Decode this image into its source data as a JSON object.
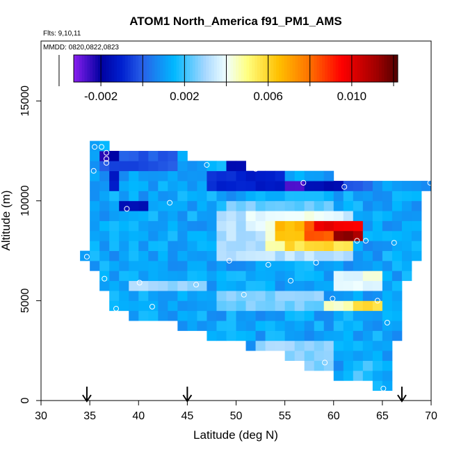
{
  "chart_data": {
    "type": "heatmap",
    "title": "ATOM1 North_America f91_PM1_AMS",
    "flights_note": "Flts: 9,10,11",
    "dates_note": "MMDD: 0820,0822,0823",
    "xlabel": "Latitude (deg N)",
    "ylabel": "Altitude (m)",
    "xlim": [
      30,
      70
    ],
    "ylim": [
      0,
      18000
    ],
    "x_ticks": [
      30,
      35,
      40,
      45,
      50,
      55,
      60,
      65,
      70
    ],
    "x_tick_labels": [
      "30",
      "35",
      "40",
      "45",
      "50",
      "55",
      "60",
      "65",
      "70"
    ],
    "y_ticks": [
      0,
      5000,
      10000,
      15000
    ],
    "y_tick_labels": [
      "0",
      "5000",
      "10000",
      "15000"
    ],
    "cell_width_deg": 1.0,
    "cell_height_m": 500,
    "colorbar": {
      "range": [
        -0.0033,
        0.0122
      ],
      "ticks": [
        -0.002,
        0.002,
        0.006,
        0.01
      ],
      "tick_labels": [
        "-0.002",
        "0.002",
        "0.006",
        "0.010"
      ],
      "separators": [
        -0.004,
        -0.002,
        0.0,
        0.002,
        0.004,
        0.006,
        0.008,
        0.01,
        0.012
      ],
      "stops": [
        {
          "v": -0.0033,
          "c": "#8a1ef0"
        },
        {
          "v": -0.002,
          "c": "#0000a0"
        },
        {
          "v": -0.001,
          "c": "#0020d0"
        },
        {
          "v": 0.0,
          "c": "#2860e8"
        },
        {
          "v": 0.0015,
          "c": "#00b8ff"
        },
        {
          "v": 0.003,
          "c": "#a8d8ff"
        },
        {
          "v": 0.004,
          "c": "#f0ffff"
        },
        {
          "v": 0.005,
          "c": "#ffff80"
        },
        {
          "v": 0.0065,
          "c": "#ffc000"
        },
        {
          "v": 0.008,
          "c": "#ff7000"
        },
        {
          "v": 0.0095,
          "c": "#ff0000"
        },
        {
          "v": 0.0112,
          "c": "#a00000"
        },
        {
          "v": 0.0122,
          "c": "#500000"
        }
      ]
    },
    "flight_markers_lat": [
      34.7,
      45.0,
      67.0
    ],
    "sample_points": [
      [
        35.5,
        12700
      ],
      [
        36.2,
        12700
      ],
      [
        36.7,
        12400
      ],
      [
        36.7,
        12100
      ],
      [
        36.7,
        11900
      ],
      [
        35.4,
        11500
      ],
      [
        47.0,
        11800
      ],
      [
        52.0,
        11600
      ],
      [
        56.9,
        10900
      ],
      [
        61.1,
        10700
      ],
      [
        69.9,
        10900
      ],
      [
        38.8,
        9600
      ],
      [
        43.2,
        9900
      ],
      [
        62.4,
        8000
      ],
      [
        63.3,
        8000
      ],
      [
        66.2,
        7900
      ],
      [
        49.3,
        7000
      ],
      [
        53.3,
        6800
      ],
      [
        58.2,
        6900
      ],
      [
        34.7,
        7200
      ],
      [
        36.5,
        6100
      ],
      [
        40.1,
        5900
      ],
      [
        45.9,
        5800
      ],
      [
        55.6,
        6000
      ],
      [
        50.8,
        5300
      ],
      [
        59.9,
        5100
      ],
      [
        64.5,
        5000
      ],
      [
        41.4,
        4700
      ],
      [
        37.7,
        4600
      ],
      [
        65.5,
        3900
      ],
      [
        59.1,
        1900
      ],
      [
        65.1,
        600
      ]
    ],
    "columns": [
      {
        "lat": 34.5,
        "bot": 7000,
        "top": 7500
      },
      {
        "lat": 35.5,
        "bot": 6500,
        "top": 13000
      },
      {
        "lat": 36.5,
        "bot": 5500,
        "top": 13000
      },
      {
        "lat": 37.5,
        "bot": 4500,
        "top": 12500
      },
      {
        "lat": 38.5,
        "bot": 4500,
        "top": 12500
      },
      {
        "lat": 39.5,
        "bot": 4000,
        "top": 12500
      },
      {
        "lat": 40.5,
        "bot": 4000,
        "top": 12500
      },
      {
        "lat": 41.5,
        "bot": 4000,
        "top": 12500
      },
      {
        "lat": 42.5,
        "bot": 4000,
        "top": 12500
      },
      {
        "lat": 43.5,
        "bot": 4000,
        "top": 12500
      },
      {
        "lat": 44.5,
        "bot": 3500,
        "top": 12500
      },
      {
        "lat": 45.5,
        "bot": 3500,
        "top": 12000
      },
      {
        "lat": 46.5,
        "bot": 3500,
        "top": 12000
      },
      {
        "lat": 47.5,
        "bot": 3000,
        "top": 12000
      },
      {
        "lat": 48.5,
        "bot": 3000,
        "top": 12000
      },
      {
        "lat": 49.5,
        "bot": 3000,
        "top": 12000
      },
      {
        "lat": 50.5,
        "bot": 3000,
        "top": 12000
      },
      {
        "lat": 51.5,
        "bot": 2500,
        "top": 11500
      },
      {
        "lat": 52.5,
        "bot": 2500,
        "top": 11500
      },
      {
        "lat": 53.5,
        "bot": 2500,
        "top": 11500
      },
      {
        "lat": 54.5,
        "bot": 2500,
        "top": 11500
      },
      {
        "lat": 55.5,
        "bot": 2000,
        "top": 11500
      },
      {
        "lat": 56.5,
        "bot": 2000,
        "top": 11500
      },
      {
        "lat": 57.5,
        "bot": 1500,
        "top": 11500
      },
      {
        "lat": 58.5,
        "bot": 1500,
        "top": 11500
      },
      {
        "lat": 59.5,
        "bot": 1500,
        "top": 11500
      },
      {
        "lat": 60.5,
        "bot": 1000,
        "top": 11000
      },
      {
        "lat": 61.5,
        "bot": 1000,
        "top": 11000
      },
      {
        "lat": 62.5,
        "bot": 1000,
        "top": 11000
      },
      {
        "lat": 63.5,
        "bot": 1000,
        "top": 11000
      },
      {
        "lat": 64.5,
        "bot": 500,
        "top": 11000
      },
      {
        "lat": 65.5,
        "bot": 500,
        "top": 11000
      },
      {
        "lat": 66.5,
        "bot": 3000,
        "top": 11000
      },
      {
        "lat": 67.5,
        "bot": 6000,
        "top": 11000
      },
      {
        "lat": 68.5,
        "bot": 7000,
        "top": 11000
      },
      {
        "lat": 69.5,
        "bot": 10500,
        "top": 11000
      }
    ],
    "features": [
      {
        "lat0": 36,
        "lat1": 44,
        "alt0": 11500,
        "alt1": 12500,
        "value": -0.0002
      },
      {
        "lat0": 36,
        "lat1": 38,
        "alt0": 12000,
        "alt1": 12500,
        "value": -0.0022
      },
      {
        "lat0": 37,
        "lat1": 38,
        "alt0": 10500,
        "alt1": 11500,
        "value": -0.0012
      },
      {
        "lat0": 38,
        "lat1": 41,
        "alt0": 9500,
        "alt1": 10000,
        "value": -0.0018
      },
      {
        "lat0": 49,
        "lat1": 52,
        "alt0": 11500,
        "alt1": 12000,
        "value": -0.0015
      },
      {
        "lat0": 47,
        "lat1": 51,
        "alt0": 10500,
        "alt1": 11500,
        "value": -0.0008
      },
      {
        "lat0": 51,
        "lat1": 55,
        "alt0": 10500,
        "alt1": 11500,
        "value": -0.0012
      },
      {
        "lat0": 55,
        "lat1": 57,
        "alt0": 10500,
        "alt1": 11000,
        "value": -0.0028
      },
      {
        "lat0": 57,
        "lat1": 61,
        "alt0": 10500,
        "alt1": 11000,
        "value": -0.0018
      },
      {
        "lat0": 61,
        "lat1": 64,
        "alt0": 10500,
        "alt1": 11000,
        "value": -0.0001
      },
      {
        "lat0": 49,
        "lat1": 60,
        "alt0": 9500,
        "alt1": 10000,
        "value": 0.0025
      },
      {
        "lat0": 48,
        "lat1": 62,
        "alt0": 7000,
        "alt1": 9500,
        "value": 0.0032
      },
      {
        "lat0": 51,
        "lat1": 61,
        "alt0": 8500,
        "alt1": 9500,
        "value": 0.004
      },
      {
        "lat0": 53,
        "lat1": 60,
        "alt0": 7500,
        "alt1": 8500,
        "value": 0.0045
      },
      {
        "lat0": 54,
        "lat1": 57,
        "alt0": 8000,
        "alt1": 9000,
        "value": 0.0065
      },
      {
        "lat0": 57,
        "lat1": 63,
        "alt0": 8000,
        "alt1": 9000,
        "value": 0.0082
      },
      {
        "lat0": 58,
        "lat1": 63,
        "alt0": 8500,
        "alt1": 9000,
        "value": 0.0098
      },
      {
        "lat0": 60,
        "lat1": 63,
        "alt0": 8000,
        "alt1": 8500,
        "value": 0.0112
      },
      {
        "lat0": 55,
        "lat1": 62,
        "alt0": 7500,
        "alt1": 8000,
        "value": 0.0058
      },
      {
        "lat0": 39,
        "lat1": 47,
        "alt0": 5500,
        "alt1": 6000,
        "value": 0.003
      },
      {
        "lat0": 48,
        "lat1": 59,
        "alt0": 4500,
        "alt1": 5500,
        "value": 0.0026
      },
      {
        "lat0": 60,
        "lat1": 65,
        "alt0": 5500,
        "alt1": 6500,
        "value": 0.004
      },
      {
        "lat0": 59,
        "lat1": 63,
        "alt0": 4500,
        "alt1": 5000,
        "value": 0.0044
      },
      {
        "lat0": 62,
        "lat1": 65,
        "alt0": 4500,
        "alt1": 5000,
        "value": 0.0058
      },
      {
        "lat0": 52,
        "lat1": 60,
        "alt0": 1500,
        "alt1": 3000,
        "value": 0.0028
      },
      {
        "lat0": 62,
        "lat1": 64,
        "alt0": 1000,
        "alt1": 2000,
        "value": 0.002
      }
    ]
  }
}
